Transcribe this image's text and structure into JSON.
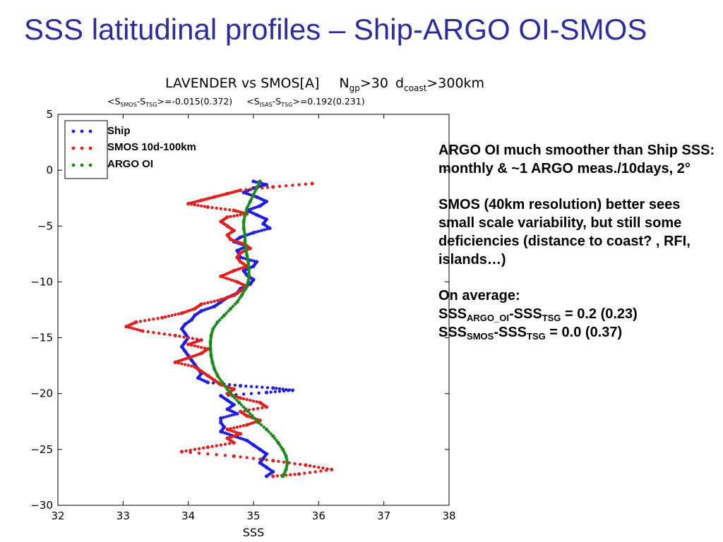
{
  "slide_title": "SSS latitudinal profiles – Ship-ARGO OI-SMOS",
  "chart_data": {
    "type": "scatter",
    "title": {
      "main": "LAVENDER vs SMOS[A]",
      "crit_n": "N",
      "crit_n_sub": "gp",
      "crit_n_val": ">30",
      "crit_d": "d",
      "crit_d_sub": "coast",
      "crit_d_val": ">300km"
    },
    "subtitle": {
      "s1_a": "<S",
      "s1_sub1": "SMOS",
      "s1_b": "-S",
      "s1_sub2": "TSG",
      "s1_c": ">=-0.015(0.372)",
      "s2_a": "<S",
      "s2_sub1": "ISAS",
      "s2_b": "-S",
      "s2_sub2": "TSG",
      "s2_c": ">=0.192(0.231)"
    },
    "xlabel": "SSS",
    "ylabel": "",
    "xlim": [
      32,
      38
    ],
    "ylim": [
      -30,
      5
    ],
    "xticks": [
      "32",
      "33",
      "34",
      "35",
      "36",
      "37",
      "38"
    ],
    "yticks": [
      "5",
      "0",
      "−5",
      "−10",
      "−15",
      "−20",
      "−25",
      "−30"
    ],
    "grid": false,
    "legend_position": "top-left",
    "series": [
      {
        "name": "Ship",
        "color": "#1f1fe0",
        "points": [
          [
            35.0,
            -1.0
          ],
          [
            35.2,
            -1.3
          ],
          [
            35.0,
            -1.6
          ],
          [
            34.85,
            -2.0
          ],
          [
            35.05,
            -2.4
          ],
          [
            35.2,
            -2.8
          ],
          [
            35.1,
            -3.2
          ],
          [
            34.9,
            -3.6
          ],
          [
            35.05,
            -4.0
          ],
          [
            35.2,
            -4.4
          ],
          [
            35.15,
            -4.8
          ],
          [
            35.25,
            -5.2
          ],
          [
            35.0,
            -5.6
          ],
          [
            34.8,
            -6.0
          ],
          [
            34.7,
            -6.4
          ],
          [
            34.9,
            -6.8
          ],
          [
            34.75,
            -7.2
          ],
          [
            34.8,
            -7.8
          ],
          [
            35.05,
            -8.2
          ],
          [
            35.0,
            -8.6
          ],
          [
            34.85,
            -9.0
          ],
          [
            34.9,
            -9.4
          ],
          [
            35.0,
            -9.8
          ],
          [
            34.95,
            -10.2
          ],
          [
            34.8,
            -10.6
          ],
          [
            34.75,
            -11.0
          ],
          [
            34.6,
            -11.4
          ],
          [
            34.5,
            -11.8
          ],
          [
            34.4,
            -12.2
          ],
          [
            34.2,
            -12.6
          ],
          [
            34.1,
            -13.0
          ],
          [
            34.05,
            -13.4
          ],
          [
            33.95,
            -13.8
          ],
          [
            33.9,
            -14.2
          ],
          [
            33.95,
            -14.6
          ],
          [
            34.0,
            -15.0
          ],
          [
            33.95,
            -15.4
          ],
          [
            33.9,
            -15.8
          ],
          [
            33.95,
            -16.2
          ],
          [
            34.0,
            -16.6
          ],
          [
            34.05,
            -17.0
          ],
          [
            34.1,
            -17.4
          ],
          [
            34.15,
            -17.8
          ],
          [
            34.2,
            -18.2
          ],
          [
            34.15,
            -18.6
          ],
          [
            34.3,
            -19.0
          ],
          [
            34.8,
            -19.3
          ],
          [
            35.3,
            -19.5
          ],
          [
            35.6,
            -19.7
          ],
          [
            35.2,
            -19.9
          ],
          [
            34.5,
            -20.2
          ],
          [
            34.6,
            -20.6
          ],
          [
            34.7,
            -21.0
          ],
          [
            34.6,
            -21.4
          ],
          [
            34.75,
            -21.8
          ],
          [
            34.5,
            -22.2
          ],
          [
            34.5,
            -22.6
          ],
          [
            34.55,
            -23.0
          ],
          [
            34.5,
            -23.4
          ],
          [
            34.7,
            -23.8
          ],
          [
            34.9,
            -24.2
          ],
          [
            35.0,
            -24.6
          ],
          [
            35.1,
            -25.0
          ],
          [
            35.2,
            -25.4
          ],
          [
            35.15,
            -25.8
          ],
          [
            35.1,
            -26.2
          ],
          [
            35.2,
            -26.6
          ],
          [
            35.3,
            -27.0
          ],
          [
            35.2,
            -27.4
          ]
        ]
      },
      {
        "name": "SMOS 10d-100km",
        "color": "#e01f1f",
        "points": [
          [
            35.9,
            -1.2
          ],
          [
            35.3,
            -1.5
          ],
          [
            34.8,
            -1.8
          ],
          [
            34.6,
            -2.1
          ],
          [
            34.4,
            -2.4
          ],
          [
            34.2,
            -2.7
          ],
          [
            34.0,
            -3.0
          ],
          [
            34.3,
            -3.3
          ],
          [
            34.7,
            -3.6
          ],
          [
            34.9,
            -3.9
          ],
          [
            34.6,
            -4.2
          ],
          [
            34.5,
            -4.6
          ],
          [
            34.6,
            -5.0
          ],
          [
            34.7,
            -5.4
          ],
          [
            34.6,
            -5.8
          ],
          [
            34.65,
            -6.2
          ],
          [
            34.85,
            -6.6
          ],
          [
            34.95,
            -7.0
          ],
          [
            34.8,
            -7.4
          ],
          [
            34.75,
            -7.8
          ],
          [
            34.8,
            -8.2
          ],
          [
            34.9,
            -8.6
          ],
          [
            34.7,
            -9.0
          ],
          [
            34.5,
            -9.5
          ],
          [
            34.75,
            -10.0
          ],
          [
            34.9,
            -10.4
          ],
          [
            34.8,
            -10.8
          ],
          [
            34.7,
            -11.2
          ],
          [
            34.5,
            -11.6
          ],
          [
            34.2,
            -12.0
          ],
          [
            34.1,
            -12.4
          ],
          [
            33.9,
            -12.8
          ],
          [
            33.6,
            -13.2
          ],
          [
            33.2,
            -13.6
          ],
          [
            33.05,
            -14.0
          ],
          [
            33.3,
            -14.4
          ],
          [
            33.8,
            -14.8
          ],
          [
            34.2,
            -15.2
          ],
          [
            34.0,
            -15.6
          ],
          [
            34.3,
            -16.0
          ],
          [
            34.2,
            -16.4
          ],
          [
            34.0,
            -16.8
          ],
          [
            33.8,
            -17.2
          ],
          [
            34.1,
            -17.6
          ],
          [
            34.2,
            -18.0
          ],
          [
            34.3,
            -18.4
          ],
          [
            34.4,
            -18.8
          ],
          [
            34.5,
            -19.2
          ],
          [
            34.7,
            -19.6
          ],
          [
            34.6,
            -20.0
          ],
          [
            34.8,
            -20.4
          ],
          [
            35.1,
            -20.8
          ],
          [
            35.2,
            -21.2
          ],
          [
            34.8,
            -21.6
          ],
          [
            34.9,
            -22.0
          ],
          [
            35.1,
            -22.4
          ],
          [
            34.9,
            -22.8
          ],
          [
            34.6,
            -23.2
          ],
          [
            34.8,
            -23.6
          ],
          [
            34.6,
            -24.0
          ],
          [
            34.7,
            -24.4
          ],
          [
            34.3,
            -24.8
          ],
          [
            33.9,
            -25.2
          ],
          [
            34.7,
            -25.6
          ],
          [
            35.3,
            -26.0
          ],
          [
            35.8,
            -26.4
          ],
          [
            36.2,
            -26.8
          ],
          [
            35.7,
            -27.2
          ],
          [
            35.3,
            -27.4
          ]
        ]
      },
      {
        "name": "ARGO OI",
        "color": "#1a8a1a",
        "points": [
          [
            35.1,
            -1.0
          ],
          [
            35.05,
            -1.6
          ],
          [
            35.0,
            -2.2
          ],
          [
            34.95,
            -2.8
          ],
          [
            34.9,
            -3.4
          ],
          [
            34.87,
            -4.0
          ],
          [
            34.85,
            -4.6
          ],
          [
            34.85,
            -5.2
          ],
          [
            34.87,
            -5.8
          ],
          [
            34.87,
            -6.4
          ],
          [
            34.88,
            -7.0
          ],
          [
            34.9,
            -7.6
          ],
          [
            34.92,
            -8.2
          ],
          [
            34.93,
            -8.8
          ],
          [
            34.93,
            -9.4
          ],
          [
            34.92,
            -10.0
          ],
          [
            34.88,
            -10.6
          ],
          [
            34.82,
            -11.2
          ],
          [
            34.75,
            -11.8
          ],
          [
            34.65,
            -12.4
          ],
          [
            34.55,
            -13.0
          ],
          [
            34.45,
            -13.6
          ],
          [
            34.38,
            -14.2
          ],
          [
            34.35,
            -14.8
          ],
          [
            34.34,
            -15.4
          ],
          [
            34.34,
            -16.0
          ],
          [
            34.35,
            -16.6
          ],
          [
            34.37,
            -17.2
          ],
          [
            34.4,
            -17.8
          ],
          [
            34.45,
            -18.4
          ],
          [
            34.52,
            -19.0
          ],
          [
            34.6,
            -19.6
          ],
          [
            34.68,
            -20.2
          ],
          [
            34.78,
            -20.8
          ],
          [
            34.88,
            -21.4
          ],
          [
            34.98,
            -22.0
          ],
          [
            35.08,
            -22.6
          ],
          [
            35.2,
            -23.2
          ],
          [
            35.3,
            -23.8
          ],
          [
            35.38,
            -24.4
          ],
          [
            35.45,
            -25.0
          ],
          [
            35.5,
            -25.6
          ],
          [
            35.52,
            -26.2
          ],
          [
            35.5,
            -26.8
          ],
          [
            35.45,
            -27.4
          ]
        ]
      }
    ]
  },
  "notes": {
    "p1": "ARGO OI much smoother than Ship SSS: monthly & ~1 ARGO meas./10days, 2°",
    "p2": "SMOS (40km resolution) better sees small scale variability, but still some deficiencies (distance to coast? , RFI, islands…)",
    "p3_line1": "On average:",
    "eq1": {
      "a": "SSS",
      "sub1": "ARGO_OI",
      "b": "-SSS",
      "sub2": "TSG",
      "c": " = 0.2 (0.23)"
    },
    "eq2": {
      "a": "SSS",
      "sub1": "SMOS",
      "b": "-SSS",
      "sub2": "TSG",
      "c": " = 0.0 (0.37)"
    }
  }
}
